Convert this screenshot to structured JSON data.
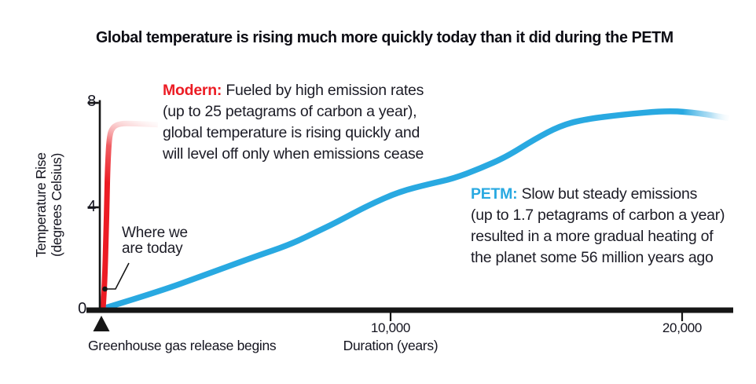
{
  "title": "Global temperature is rising much more quickly today than it did during the PETM",
  "y_axis": {
    "label_line1": "Temperature Rise",
    "label_line2": "(degrees Celsius)",
    "tick_8": "8",
    "tick_4": "4",
    "tick_0": "0"
  },
  "x_axis": {
    "label": "Duration (years)",
    "tick_10k": "10,000",
    "tick_20k": "20,000",
    "origin_label": "Greenhouse gas release begins"
  },
  "annotations": {
    "modern": {
      "label": "Modern:",
      "line1": " Fueled by high emission rates",
      "line2": "(up to 25 petagrams of carbon a year),",
      "line3": "global temperature is rising quickly and",
      "line4": "will level off only when emissions cease"
    },
    "petm": {
      "label": "PETM:",
      "line1": " Slow but steady emissions",
      "line2": "(up to 1.7 petagrams of carbon a year)",
      "line3": "resulted in a more gradual heating of",
      "line4": "the planet some 56 million years ago"
    },
    "today": {
      "line1": "Where we",
      "line2": "are today"
    }
  },
  "colors": {
    "modern_red": "#ec1c24",
    "petm_blue": "#29a9e1",
    "axis_black": "#161616",
    "text_dark": "#1c1c26"
  },
  "chart_data": {
    "type": "line",
    "title": "Global temperature is rising much more quickly today than it did during the PETM",
    "xlabel": "Duration (years)",
    "ylabel": "Temperature Rise (degrees Celsius)",
    "xlim": [
      0,
      21800
    ],
    "ylim": [
      0,
      8
    ],
    "x_tick_values": [
      10000,
      20000
    ],
    "y_tick_values": [
      0,
      4,
      8
    ],
    "grid": false,
    "legend": "inline-annotations",
    "series": [
      {
        "name": "Modern",
        "color": "#ec1c24",
        "fade_tail": true,
        "points": [
          [
            0,
            0
          ],
          [
            55,
            0.8
          ],
          [
            110,
            2.9
          ],
          [
            140,
            4.4
          ],
          [
            165,
            5.6
          ],
          [
            220,
            6.7
          ],
          [
            330,
            7.05
          ],
          [
            580,
            7.2
          ],
          [
            1100,
            7.2
          ],
          [
            1900,
            7.15
          ]
        ]
      },
      {
        "name": "PETM",
        "color": "#29a9e1",
        "fade_tail": true,
        "points": [
          [
            0,
            0
          ],
          [
            1900,
            0.65
          ],
          [
            3500,
            1.3
          ],
          [
            5200,
            2.0
          ],
          [
            6500,
            2.5
          ],
          [
            7600,
            3.1
          ],
          [
            8150,
            3.4
          ],
          [
            9150,
            4.0
          ],
          [
            10250,
            4.55
          ],
          [
            11300,
            4.85
          ],
          [
            12100,
            5.05
          ],
          [
            13050,
            5.45
          ],
          [
            13950,
            5.9
          ],
          [
            14950,
            6.6
          ],
          [
            15800,
            7.1
          ],
          [
            16600,
            7.35
          ],
          [
            18000,
            7.55
          ],
          [
            19550,
            7.7
          ],
          [
            20650,
            7.6
          ],
          [
            21650,
            7.4
          ]
        ]
      }
    ],
    "markers": [
      {
        "series": "Modern",
        "x": 55,
        "y": 0.8,
        "label": "Where we are today"
      }
    ],
    "event_marker": {
      "x": 0,
      "label": "Greenhouse gas release begins"
    }
  }
}
